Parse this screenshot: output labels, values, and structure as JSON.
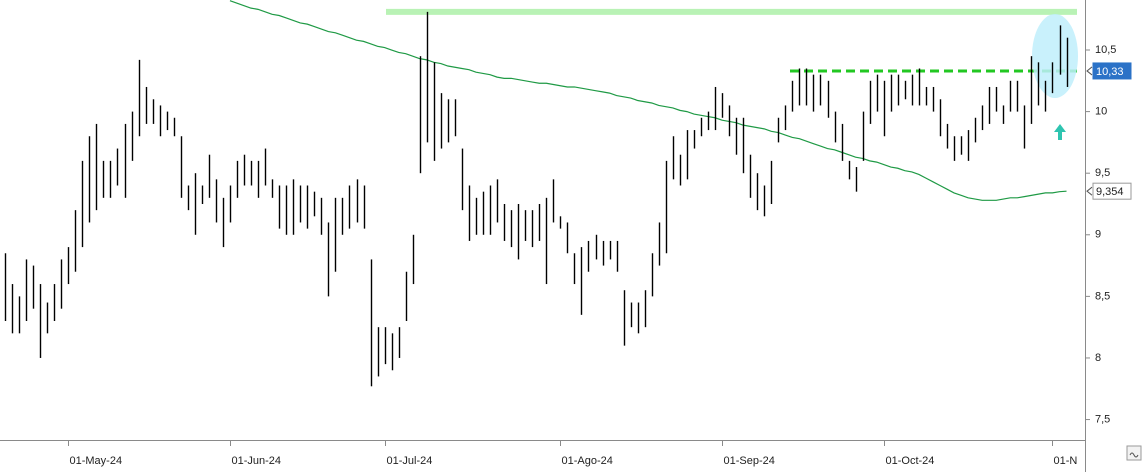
{
  "chart_data": {
    "type": "hilo",
    "ylim": [
      7.334,
      10.906
    ],
    "yticks": [
      {
        "value": 10.5,
        "label": "10,5"
      },
      10,
      {
        "value": 9.5,
        "label": "9,5"
      },
      9,
      {
        "value": 8.5,
        "label": "8,5"
      },
      8,
      {
        "value": 7.5,
        "label": "7,5"
      }
    ],
    "bar_color": "#000000",
    "categories": [
      null,
      null,
      null,
      null,
      null,
      null,
      null,
      null,
      null,
      "01-May-24",
      null,
      null,
      null,
      null,
      null,
      null,
      null,
      null,
      null,
      null,
      null,
      null,
      null,
      null,
      null,
      null,
      null,
      null,
      null,
      null,
      null,
      null,
      "01-Jun-24",
      null,
      null,
      null,
      null,
      null,
      null,
      null,
      null,
      null,
      null,
      null,
      null,
      null,
      null,
      null,
      null,
      null,
      null,
      null,
      null,
      null,
      "01-Jul-24",
      null,
      null,
      null,
      null,
      null,
      null,
      null,
      null,
      null,
      null,
      null,
      null,
      null,
      null,
      null,
      null,
      null,
      null,
      null,
      null,
      null,
      null,
      null,
      null,
      "01-Ago-24",
      null,
      null,
      null,
      null,
      null,
      null,
      null,
      null,
      null,
      null,
      null,
      null,
      null,
      null,
      null,
      null,
      null,
      null,
      null,
      null,
      null,
      null,
      "01-Sep-24",
      null,
      null,
      null,
      null,
      null,
      null,
      null,
      null,
      null,
      null,
      null,
      null,
      null,
      null,
      null,
      null,
      null,
      null,
      null,
      null,
      null,
      null,
      "01-Oct-24",
      null,
      null,
      null,
      null,
      null,
      null,
      null,
      null,
      null,
      null,
      null,
      null,
      null,
      null,
      null,
      null,
      null,
      null,
      null,
      null,
      null,
      null,
      null,
      "01-N",
      null,
      null
    ],
    "high": [
      8.85,
      8.6,
      8.5,
      8.8,
      8.75,
      8.6,
      8.45,
      8.6,
      8.8,
      8.9,
      9.2,
      9.6,
      9.8,
      9.9,
      9.6,
      9.6,
      9.7,
      9.9,
      10.0,
      10.42,
      10.2,
      10.1,
      10.05,
      10.0,
      9.95,
      9.8,
      9.4,
      9.5,
      9.4,
      9.65,
      9.45,
      9.3,
      9.4,
      9.6,
      9.65,
      9.6,
      9.6,
      9.7,
      9.45,
      9.4,
      9.4,
      9.45,
      9.4,
      9.4,
      9.35,
      9.3,
      9.1,
      9.3,
      9.3,
      9.4,
      9.45,
      9.4,
      8.8,
      8.25,
      8.25,
      8.2,
      8.25,
      8.7,
      9.0,
      10.45,
      10.81,
      10.4,
      10.15,
      10.1,
      10.1,
      9.7,
      9.4,
      9.3,
      9.35,
      9.4,
      9.45,
      9.25,
      9.2,
      9.25,
      9.2,
      9.2,
      9.25,
      9.3,
      9.45,
      9.15,
      9.1,
      8.85,
      8.9,
      8.95,
      9.0,
      8.95,
      8.95,
      8.95,
      8.55,
      8.45,
      8.45,
      8.55,
      8.85,
      9.1,
      9.6,
      9.8,
      9.65,
      9.85,
      9.85,
      9.95,
      10.0,
      10.2,
      10.15,
      10.05,
      9.95,
      9.95,
      9.65,
      9.5,
      9.4,
      9.6,
      9.95,
      10.05,
      10.25,
      10.35,
      10.35,
      10.3,
      10.3,
      10.25,
      10.0,
      9.9,
      9.6,
      9.55,
      10.0,
      10.25,
      10.3,
      10.25,
      10.3,
      10.3,
      10.25,
      10.3,
      10.35,
      10.2,
      10.2,
      10.1,
      9.9,
      9.8,
      9.8,
      9.85,
      9.95,
      10.05,
      10.2,
      10.2,
      10.05,
      10.25,
      10.25,
      10.05,
      10.45,
      10.4,
      10.25,
      10.4,
      10.7,
      10.6
    ],
    "low": [
      8.3,
      8.2,
      8.2,
      8.3,
      8.4,
      8.0,
      8.2,
      8.3,
      8.4,
      8.6,
      8.7,
      8.9,
      9.1,
      9.2,
      9.3,
      9.3,
      9.4,
      9.3,
      9.6,
      9.8,
      9.9,
      9.9,
      9.8,
      9.85,
      9.8,
      9.3,
      9.2,
      9.0,
      9.25,
      9.3,
      9.1,
      8.9,
      9.1,
      9.3,
      9.4,
      9.4,
      9.3,
      9.4,
      9.3,
      9.05,
      9.0,
      9.0,
      9.1,
      9.05,
      9.15,
      9.0,
      8.5,
      8.7,
      9.0,
      9.05,
      9.1,
      9.05,
      7.77,
      7.85,
      7.95,
      7.9,
      8.0,
      8.3,
      8.6,
      9.5,
      9.75,
      9.6,
      9.7,
      9.75,
      9.8,
      9.2,
      8.95,
      9.0,
      9.0,
      9.0,
      9.1,
      8.95,
      8.9,
      8.8,
      8.95,
      8.9,
      8.95,
      8.6,
      9.1,
      9.05,
      8.85,
      8.6,
      8.35,
      8.7,
      8.8,
      8.75,
      8.8,
      8.7,
      8.1,
      8.25,
      8.2,
      8.25,
      8.5,
      8.75,
      8.85,
      9.45,
      9.4,
      9.45,
      9.7,
      9.8,
      9.85,
      9.85,
      9.95,
      9.8,
      9.65,
      9.5,
      9.3,
      9.2,
      9.15,
      9.25,
      9.75,
      9.85,
      10.0,
      10.05,
      10.05,
      10.0,
      10.05,
      9.95,
      9.75,
      9.6,
      9.45,
      9.35,
      9.6,
      9.9,
      10.0,
      9.8,
      10.0,
      10.05,
      10.1,
      10.05,
      10.05,
      10.05,
      10.0,
      9.8,
      9.7,
      9.6,
      9.65,
      9.6,
      9.75,
      9.85,
      9.9,
      10.0,
      9.9,
      10.0,
      10.0,
      9.7,
      9.9,
      10.05,
      10.0,
      10.15,
      10.3,
      10.2
    ],
    "moving_average": {
      "color": "#1f9a45",
      "values": [
        null,
        null,
        null,
        null,
        null,
        null,
        null,
        null,
        null,
        null,
        null,
        null,
        null,
        null,
        null,
        null,
        null,
        null,
        null,
        null,
        null,
        null,
        null,
        null,
        null,
        null,
        null,
        null,
        null,
        null,
        null,
        null,
        10.9,
        10.88,
        10.86,
        10.84,
        10.83,
        10.81,
        10.79,
        10.78,
        10.76,
        10.74,
        10.72,
        10.71,
        10.69,
        10.67,
        10.65,
        10.64,
        10.62,
        10.6,
        10.58,
        10.57,
        10.55,
        10.53,
        10.52,
        10.5,
        10.48,
        10.47,
        10.45,
        10.43,
        10.42,
        10.4,
        10.39,
        10.37,
        10.36,
        10.35,
        10.34,
        10.32,
        10.31,
        10.3,
        10.28,
        10.27,
        10.27,
        10.26,
        10.25,
        10.24,
        10.23,
        10.23,
        10.22,
        10.21,
        10.2,
        10.2,
        10.19,
        10.18,
        10.17,
        10.16,
        10.15,
        10.13,
        10.12,
        10.11,
        10.09,
        10.08,
        10.07,
        10.05,
        10.04,
        10.03,
        10.01,
        10.0,
        9.98,
        9.97,
        9.96,
        9.95,
        9.93,
        9.92,
        9.91,
        9.89,
        9.88,
        9.87,
        9.86,
        9.84,
        9.83,
        9.81,
        9.79,
        9.78,
        9.76,
        9.74,
        9.72,
        9.7,
        9.69,
        9.67,
        9.65,
        9.63,
        9.62,
        9.6,
        9.59,
        9.57,
        9.55,
        9.54,
        9.52,
        9.51,
        9.49,
        9.46,
        9.43,
        9.4,
        9.37,
        9.34,
        9.32,
        9.3,
        9.29,
        9.28,
        9.28,
        9.28,
        9.29,
        9.3,
        9.3,
        9.31,
        9.32,
        9.33,
        9.34,
        9.34,
        9.35,
        9.354
      ]
    },
    "hlines": [
      {
        "value": 10.81,
        "color": "#b9f2b5",
        "dashed": false
      },
      {
        "value": 10.33,
        "color": "#22c722",
        "dashed": true
      }
    ],
    "markers": [
      {
        "value": 10.33,
        "label": "10,33",
        "color": "#2b72c7"
      },
      {
        "value": 9.354,
        "label": "9,354",
        "color": "#ffffff"
      }
    ]
  }
}
